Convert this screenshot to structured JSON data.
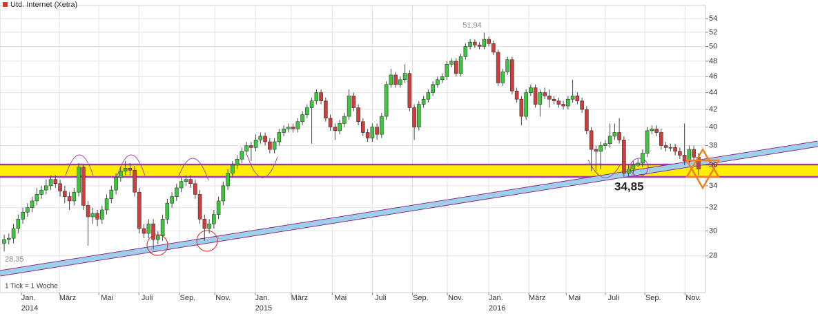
{
  "chart_data": {
    "type": "candlestick",
    "legend": "top-left",
    "grid": true,
    "yscale": "log",
    "xlabel": "1 Tick = 1 Woche",
    "xlim": [
      -0.9,
      150.5
    ],
    "ylim": [
      25.3,
      56
    ],
    "yticks": [
      28,
      30,
      32,
      34,
      36,
      38,
      40,
      42,
      44,
      46,
      48,
      50,
      52,
      54
    ],
    "xticks": [
      {
        "value": 3.7,
        "label": "Jan.\n2014"
      },
      {
        "value": 11.85,
        "label": "März"
      },
      {
        "value": 20.3,
        "label": "Mai"
      },
      {
        "value": 28.9,
        "label": "Juli"
      },
      {
        "value": 37.6,
        "label": "Sep."
      },
      {
        "value": 45.2,
        "label": "Nov."
      },
      {
        "value": 53.9,
        "label": "Jan.\n2015"
      },
      {
        "value": 61.6,
        "label": "März"
      },
      {
        "value": 70.4,
        "label": "Mai"
      },
      {
        "value": 79.0,
        "label": "Juli"
      },
      {
        "value": 87.6,
        "label": "Sep."
      },
      {
        "value": 95.1,
        "label": "Nov."
      },
      {
        "value": 104.0,
        "label": "Jan.\n2016"
      },
      {
        "value": 112.6,
        "label": "März"
      },
      {
        "value": 120.6,
        "label": "Mai"
      },
      {
        "value": 129.0,
        "label": "Juli"
      },
      {
        "value": 137.5,
        "label": "Sep."
      },
      {
        "value": 146.1,
        "label": "Nov."
      }
    ],
    "annotations": [
      {
        "text": "51,94"
      },
      {
        "text": "28,35"
      },
      {
        "text": "34,85"
      }
    ],
    "up_color": "#3cc83c",
    "down_color": "#d23c3c",
    "x": [
      0,
      1,
      2,
      3,
      4,
      5,
      6,
      7,
      8,
      9,
      10,
      11,
      12,
      13,
      14,
      15,
      16,
      17,
      18,
      19,
      20,
      21,
      22,
      23,
      24,
      25,
      26,
      27,
      28,
      29,
      30,
      31,
      32,
      33,
      34,
      35,
      36,
      37,
      38,
      39,
      40,
      41,
      42,
      43,
      44,
      45,
      46,
      47,
      48,
      49,
      50,
      51,
      52,
      53,
      54,
      55,
      56,
      57,
      58,
      59,
      60,
      61,
      62,
      63,
      64,
      65,
      66,
      67,
      68,
      69,
      70,
      71,
      72,
      73,
      74,
      75,
      76,
      77,
      78,
      79,
      80,
      81,
      82,
      83,
      84,
      85,
      86,
      87,
      88,
      89,
      90,
      91,
      92,
      93,
      94,
      95,
      96,
      97,
      98,
      99,
      100,
      101,
      102,
      103,
      104,
      105,
      106,
      107,
      108,
      109,
      110,
      111,
      112,
      113,
      114,
      115,
      116,
      117,
      118,
      119,
      120,
      121,
      122,
      123,
      124,
      125,
      126,
      127,
      128,
      129,
      130,
      131,
      132,
      133,
      134,
      135,
      136,
      137,
      138,
      139,
      140,
      141,
      142,
      143,
      144,
      145,
      146,
      147,
      148,
      149
    ],
    "series": [
      {
        "name": "Utd. Internet (Xetra)",
        "color": "#d23c3c",
        "open": [
          29.0,
          29.3,
          29.4,
          30.2,
          31.0,
          31.6,
          32.0,
          32.6,
          33.2,
          33.6,
          34.0,
          34.6,
          34.2,
          33.5,
          33.0,
          32.6,
          33.4,
          35.8,
          32.2,
          31.2,
          31.5,
          31.0,
          31.8,
          32.8,
          33.6,
          34.8,
          35.4,
          35.7,
          35.5,
          33.4,
          30.2,
          29.8,
          30.6,
          29.3,
          29.6,
          31.0,
          32.4,
          33.0,
          33.8,
          34.4,
          34.6,
          34.2,
          33.2,
          31.0,
          30.2,
          30.6,
          31.4,
          32.6,
          34.0,
          35.2,
          36.0,
          36.6,
          37.4,
          38.0,
          37.8,
          38.6,
          39.0,
          38.4,
          37.6,
          38.4,
          39.4,
          39.8,
          40.0,
          39.8,
          40.6,
          41.4,
          42.2,
          43.0,
          44.0,
          43.0,
          41.0,
          40.0,
          39.6,
          40.4,
          41.2,
          43.6,
          42.2,
          40.6,
          39.4,
          38.8,
          40.0,
          39.2,
          41.2,
          45.0,
          46.2,
          45.0,
          45.6,
          46.4,
          42.2,
          40.0,
          42.6,
          43.2,
          44.0,
          45.0,
          45.6,
          46.0,
          47.6,
          48.0,
          46.4,
          48.6,
          50.0,
          50.6,
          50.2,
          50.0,
          51.0,
          50.4,
          49.2,
          45.2,
          46.6,
          48.2,
          44.2,
          43.2,
          41.2,
          44.0,
          44.6,
          42.6,
          44.0,
          43.6,
          43.2,
          43.0,
          42.6,
          42.4,
          43.2,
          43.6,
          43.0,
          42.0,
          39.6,
          37.6,
          37.4,
          38.0,
          38.2,
          39.0,
          39.4,
          38.6,
          35.2,
          35.6,
          36.0,
          36.2,
          37.2,
          39.6,
          39.8,
          39.4,
          38.0,
          37.8,
          37.8,
          37.4,
          37.0,
          36.4,
          37.6,
          36.8
        ],
        "high": [
          29.7,
          29.8,
          30.6,
          31.4,
          32.0,
          32.4,
          33.0,
          33.8,
          34.0,
          34.6,
          35.0,
          35.0,
          34.6,
          34.0,
          33.4,
          33.8,
          36.2,
          36.0,
          32.6,
          32.0,
          31.8,
          32.2,
          33.2,
          34.0,
          35.2,
          35.8,
          36.4,
          36.2,
          35.9,
          33.8,
          30.6,
          31.0,
          31.0,
          30.0,
          31.4,
          32.8,
          33.4,
          34.2,
          34.8,
          35.0,
          35.0,
          34.6,
          33.6,
          31.4,
          31.0,
          31.8,
          33.0,
          34.4,
          35.6,
          36.4,
          37.0,
          37.8,
          38.4,
          38.4,
          39.2,
          39.4,
          39.4,
          38.8,
          38.8,
          39.8,
          40.2,
          40.4,
          40.4,
          41.0,
          41.8,
          42.6,
          43.4,
          44.4,
          44.4,
          43.4,
          41.4,
          40.4,
          40.8,
          41.6,
          44.4,
          44.0,
          42.6,
          41.0,
          39.8,
          40.4,
          40.4,
          41.6,
          45.4,
          47.0,
          46.6,
          46.0,
          47.6,
          46.8,
          42.6,
          43.0,
          43.6,
          44.4,
          45.4,
          46.0,
          46.4,
          48.0,
          48.4,
          48.4,
          49.0,
          50.4,
          51.0,
          51.0,
          50.6,
          51.94,
          51.4,
          50.8,
          49.6,
          47.0,
          48.6,
          48.6,
          44.6,
          43.6,
          44.4,
          45.0,
          45.0,
          44.4,
          44.6,
          44.4,
          43.6,
          43.4,
          43.0,
          43.6,
          45.6,
          44.0,
          43.4,
          42.4,
          40.0,
          38.0,
          38.4,
          38.6,
          40.4,
          40.4,
          41.0,
          39.0,
          36.0,
          36.4,
          36.6,
          37.6,
          40.0,
          40.2,
          40.2,
          39.8,
          38.4,
          38.2,
          38.2,
          37.8,
          40.4,
          38.0,
          38.0,
          37.2
        ],
        "low": [
          28.35,
          28.9,
          29.0,
          29.8,
          30.6,
          31.2,
          31.6,
          32.2,
          32.8,
          33.2,
          33.6,
          33.8,
          33.0,
          32.4,
          31.8,
          32.2,
          33.0,
          31.8,
          28.8,
          30.6,
          30.4,
          30.6,
          31.4,
          32.4,
          33.2,
          34.4,
          35.0,
          35.0,
          33.0,
          29.8,
          29.4,
          29.4,
          28.5,
          28.9,
          29.2,
          30.6,
          32.0,
          32.6,
          33.4,
          34.0,
          33.8,
          32.8,
          30.6,
          29.2,
          29.8,
          30.2,
          31.0,
          32.2,
          33.6,
          34.8,
          35.6,
          36.2,
          37.0,
          36.4,
          37.4,
          38.2,
          38.0,
          37.2,
          37.2,
          38.0,
          39.0,
          39.4,
          39.4,
          39.4,
          40.2,
          41.0,
          38.2,
          42.6,
          42.6,
          40.6,
          39.6,
          38.6,
          39.2,
          40.0,
          40.8,
          41.8,
          40.2,
          39.0,
          38.4,
          38.4,
          38.6,
          38.8,
          40.8,
          44.6,
          44.6,
          44.6,
          45.2,
          41.8,
          38.6,
          39.6,
          42.2,
          42.8,
          43.6,
          44.6,
          45.2,
          45.6,
          47.2,
          46.0,
          46.0,
          48.2,
          49.6,
          49.8,
          49.6,
          49.6,
          50.0,
          48.8,
          44.8,
          44.8,
          46.2,
          43.8,
          42.8,
          40.2,
          40.8,
          43.6,
          42.2,
          41.2,
          43.2,
          42.2,
          42.6,
          42.2,
          42.0,
          42.0,
          42.8,
          42.6,
          41.6,
          39.2,
          35.4,
          35.4,
          35.6,
          37.6,
          37.8,
          38.6,
          38.2,
          34.85,
          34.9,
          35.2,
          35.8,
          35.8,
          36.8,
          39.2,
          39.0,
          37.6,
          37.4,
          37.4,
          37.0,
          36.6,
          36.0,
          36.0,
          36.4,
          35.0
        ],
        "close": [
          29.3,
          29.4,
          30.2,
          31.0,
          31.6,
          32.0,
          32.6,
          33.2,
          33.6,
          34.0,
          34.6,
          34.2,
          33.5,
          33.0,
          32.6,
          33.4,
          35.8,
          32.2,
          31.2,
          31.5,
          31.0,
          31.8,
          32.8,
          33.6,
          34.8,
          35.4,
          35.7,
          35.5,
          33.4,
          30.2,
          29.8,
          30.6,
          29.3,
          29.6,
          31.0,
          32.4,
          33.0,
          33.8,
          34.4,
          34.6,
          34.2,
          33.2,
          31.0,
          30.2,
          30.6,
          31.4,
          32.6,
          34.0,
          35.2,
          36.0,
          36.6,
          37.4,
          38.0,
          37.8,
          38.6,
          39.0,
          38.4,
          37.6,
          38.4,
          39.4,
          39.8,
          40.0,
          39.8,
          40.6,
          41.4,
          42.2,
          43.0,
          44.0,
          43.0,
          41.0,
          40.0,
          39.6,
          40.4,
          41.2,
          43.6,
          42.2,
          40.6,
          39.4,
          38.8,
          40.0,
          39.2,
          41.2,
          45.0,
          46.2,
          45.0,
          45.6,
          46.4,
          42.2,
          40.0,
          42.6,
          43.2,
          44.0,
          45.0,
          45.6,
          46.0,
          47.6,
          48.0,
          46.4,
          48.6,
          50.0,
          50.6,
          50.2,
          50.0,
          51.0,
          50.4,
          49.2,
          45.2,
          46.6,
          48.2,
          44.2,
          43.2,
          41.2,
          44.0,
          44.6,
          42.6,
          44.0,
          43.6,
          43.2,
          43.0,
          42.6,
          42.4,
          43.2,
          43.6,
          43.0,
          42.0,
          39.6,
          37.6,
          37.4,
          38.0,
          38.2,
          39.0,
          39.4,
          38.6,
          35.2,
          35.6,
          36.0,
          36.2,
          37.2,
          39.6,
          39.8,
          39.4,
          38.0,
          37.8,
          37.8,
          37.4,
          37.0,
          36.4,
          37.6,
          36.8,
          35.6
        ]
      }
    ]
  }
}
